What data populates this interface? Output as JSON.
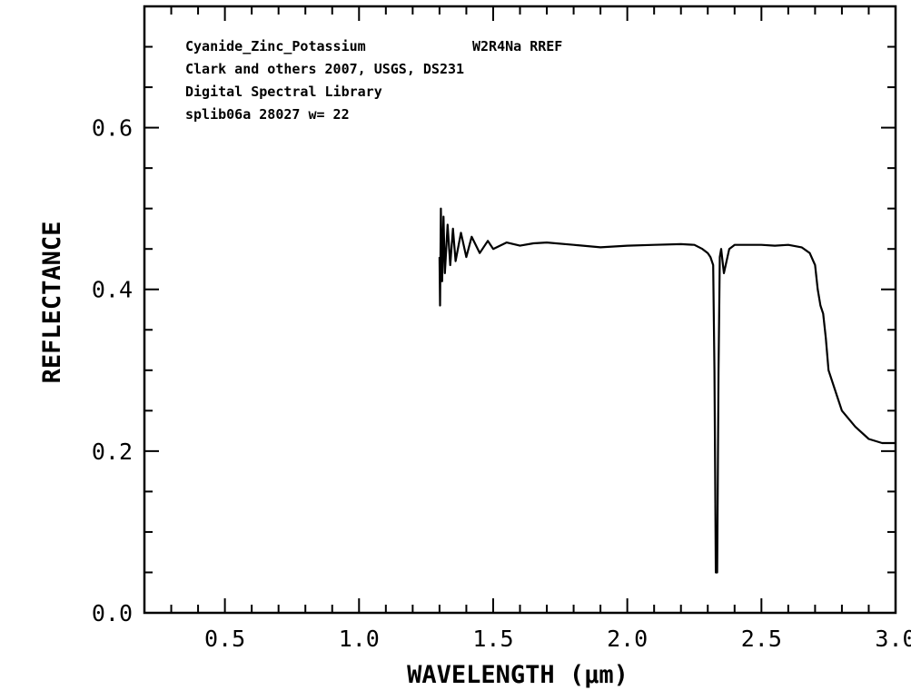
{
  "chart_data": {
    "type": "line",
    "title": "",
    "xlabel": "WAVELENGTH (μm)",
    "ylabel": "REFLECTANCE",
    "xlim": [
      0.2,
      3.0
    ],
    "ylim": [
      0.0,
      0.75
    ],
    "x_ticks": [
      0.5,
      1.0,
      1.5,
      2.0,
      2.5,
      3.0
    ],
    "x_tick_labels": [
      "0.5",
      "1.0",
      "1.5",
      "2.0",
      "2.5",
      "3.0"
    ],
    "y_ticks": [
      0.0,
      0.2,
      0.4,
      0.6
    ],
    "y_tick_labels": [
      "0.0",
      "0.2",
      "0.4",
      "0.6"
    ],
    "grid": false,
    "annotations": [
      "Cyanide_Zinc_Potassium",
      "W2R4Na RREF",
      "Clark and others 2007, USGS, DS231",
      "Digital Spectral Library",
      "splib06a 28027 w= 22"
    ],
    "series": [
      {
        "x": [
          1.3,
          1.302,
          1.305,
          1.31,
          1.315,
          1.32,
          1.33,
          1.34,
          1.35,
          1.36,
          1.38,
          1.4,
          1.42,
          1.45,
          1.48,
          1.5,
          1.55,
          1.6,
          1.65,
          1.7,
          1.8,
          1.9,
          2.0,
          2.1,
          2.2,
          2.25,
          2.28,
          2.3,
          2.31,
          2.32,
          2.325,
          2.33,
          2.335,
          2.34,
          2.345,
          2.35,
          2.36,
          2.38,
          2.4,
          2.45,
          2.5,
          2.55,
          2.6,
          2.65,
          2.68,
          2.7,
          2.71,
          2.72,
          2.73,
          2.74,
          2.75,
          2.78,
          2.8,
          2.85,
          2.9,
          2.95,
          3.0
        ],
        "y": [
          0.44,
          0.38,
          0.5,
          0.41,
          0.49,
          0.42,
          0.48,
          0.43,
          0.475,
          0.435,
          0.47,
          0.44,
          0.465,
          0.445,
          0.46,
          0.45,
          0.458,
          0.454,
          0.457,
          0.458,
          0.455,
          0.452,
          0.454,
          0.455,
          0.456,
          0.455,
          0.45,
          0.445,
          0.44,
          0.43,
          0.3,
          0.05,
          0.05,
          0.3,
          0.44,
          0.45,
          0.42,
          0.45,
          0.455,
          0.455,
          0.455,
          0.454,
          0.455,
          0.452,
          0.445,
          0.43,
          0.4,
          0.38,
          0.37,
          0.34,
          0.3,
          0.27,
          0.25,
          0.23,
          0.215,
          0.21,
          0.21
        ]
      }
    ]
  }
}
